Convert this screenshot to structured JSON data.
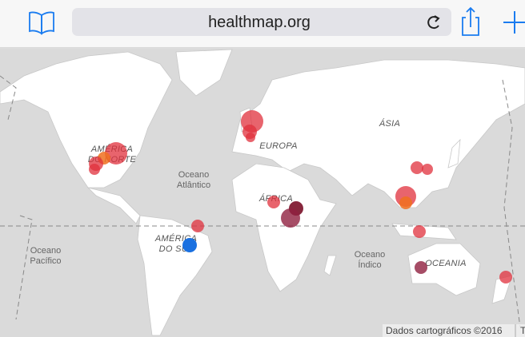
{
  "browser": {
    "url": "healthmap.org"
  },
  "map": {
    "labels": [
      {
        "lines": [
          "AMÉRICA",
          "DO NORTE"
        ]
      },
      {
        "lines": [
          "Oceano",
          "Atlântico"
        ]
      },
      {
        "lines": [
          "EUROPA"
        ]
      },
      {
        "lines": [
          "ÁSIA"
        ]
      },
      {
        "lines": [
          "ÁFRICA"
        ]
      },
      {
        "lines": [
          "AMÉRICA",
          "DO SUL"
        ]
      },
      {
        "lines": [
          "Oceano",
          "Pacífico"
        ]
      },
      {
        "lines": [
          "Oceano",
          "Índico"
        ]
      },
      {
        "lines": [
          "OCEANIA"
        ]
      }
    ],
    "attribution": "Dados cartográficos ©2016",
    "attribution_cut": "T"
  }
}
